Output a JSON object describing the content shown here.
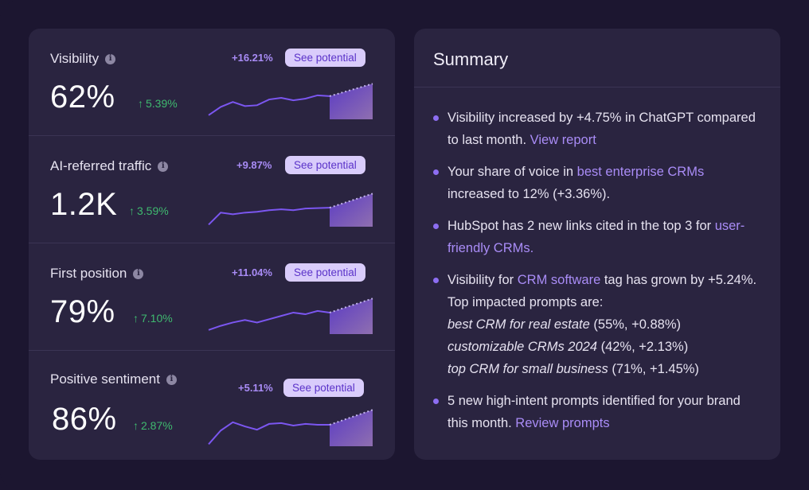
{
  "metrics": [
    {
      "title": "Visibility",
      "value": "62%",
      "change": "5.39%",
      "potential": "+16.21%",
      "button": "See potential",
      "trend": [
        0.1,
        0.3,
        0.42,
        0.32,
        0.34,
        0.48,
        0.52,
        0.46,
        0.5,
        0.58,
        0.56
      ],
      "projection": [
        0.56,
        0.86
      ]
    },
    {
      "title": "AI-referred traffic",
      "value": "1.2K",
      "change": "3.59%",
      "potential": "+9.87%",
      "button": "See potential",
      "trend": [
        0.05,
        0.34,
        0.3,
        0.34,
        0.36,
        0.4,
        0.42,
        0.4,
        0.44,
        0.45,
        0.46
      ],
      "projection": [
        0.46,
        0.8
      ]
    },
    {
      "title": "First position",
      "value": "79%",
      "change": "7.10%",
      "potential": "+11.04%",
      "button": "See potential",
      "trend": [
        0.1,
        0.2,
        0.28,
        0.34,
        0.28,
        0.36,
        0.44,
        0.52,
        0.48,
        0.56,
        0.52
      ],
      "projection": [
        0.52,
        0.86
      ]
    },
    {
      "title": "Positive sentiment",
      "value": "86%",
      "change": "2.87%",
      "potential": "+5.11%",
      "button": "See potential",
      "trend": [
        0.05,
        0.38,
        0.58,
        0.48,
        0.4,
        0.54,
        0.56,
        0.5,
        0.54,
        0.52,
        0.52
      ],
      "projection": [
        0.52,
        0.88
      ]
    }
  ],
  "summary": {
    "title": "Summary",
    "item1": {
      "text": "Visibility increased by +4.75% in ChatGPT compared to last month. ",
      "link": "View report"
    },
    "item2": {
      "pre": "Your share of voice in ",
      "link": "best enterprise CRMs",
      "post": " increased to 12% (+3.36%)."
    },
    "item3": {
      "text": "HubSpot has 2 new links cited in the top 3 for ",
      "link": "user-friendly CRMs."
    },
    "item4": {
      "pre": "Visibility for ",
      "link": "CRM software",
      "post": " tag has grown by +5.24%. Top impacted prompts are:",
      "prompts": [
        {
          "name": "best CRM for real estate",
          "stats": " (55%, +0.88%)"
        },
        {
          "name": "customizable CRMs 2024",
          "stats": " (42%, +2.13%)"
        },
        {
          "name": "top CRM for small business",
          "stats": " (71%, +1.45%)"
        }
      ]
    },
    "item5": {
      "text": "5 new high-intent prompts identified for your brand this month. ",
      "link": "Review prompts"
    }
  },
  "colors": {
    "accent": "#8d6ef2",
    "positive": "#3fb96f",
    "button_bg": "#d9ccfb",
    "panel_bg": "#2a2440"
  }
}
